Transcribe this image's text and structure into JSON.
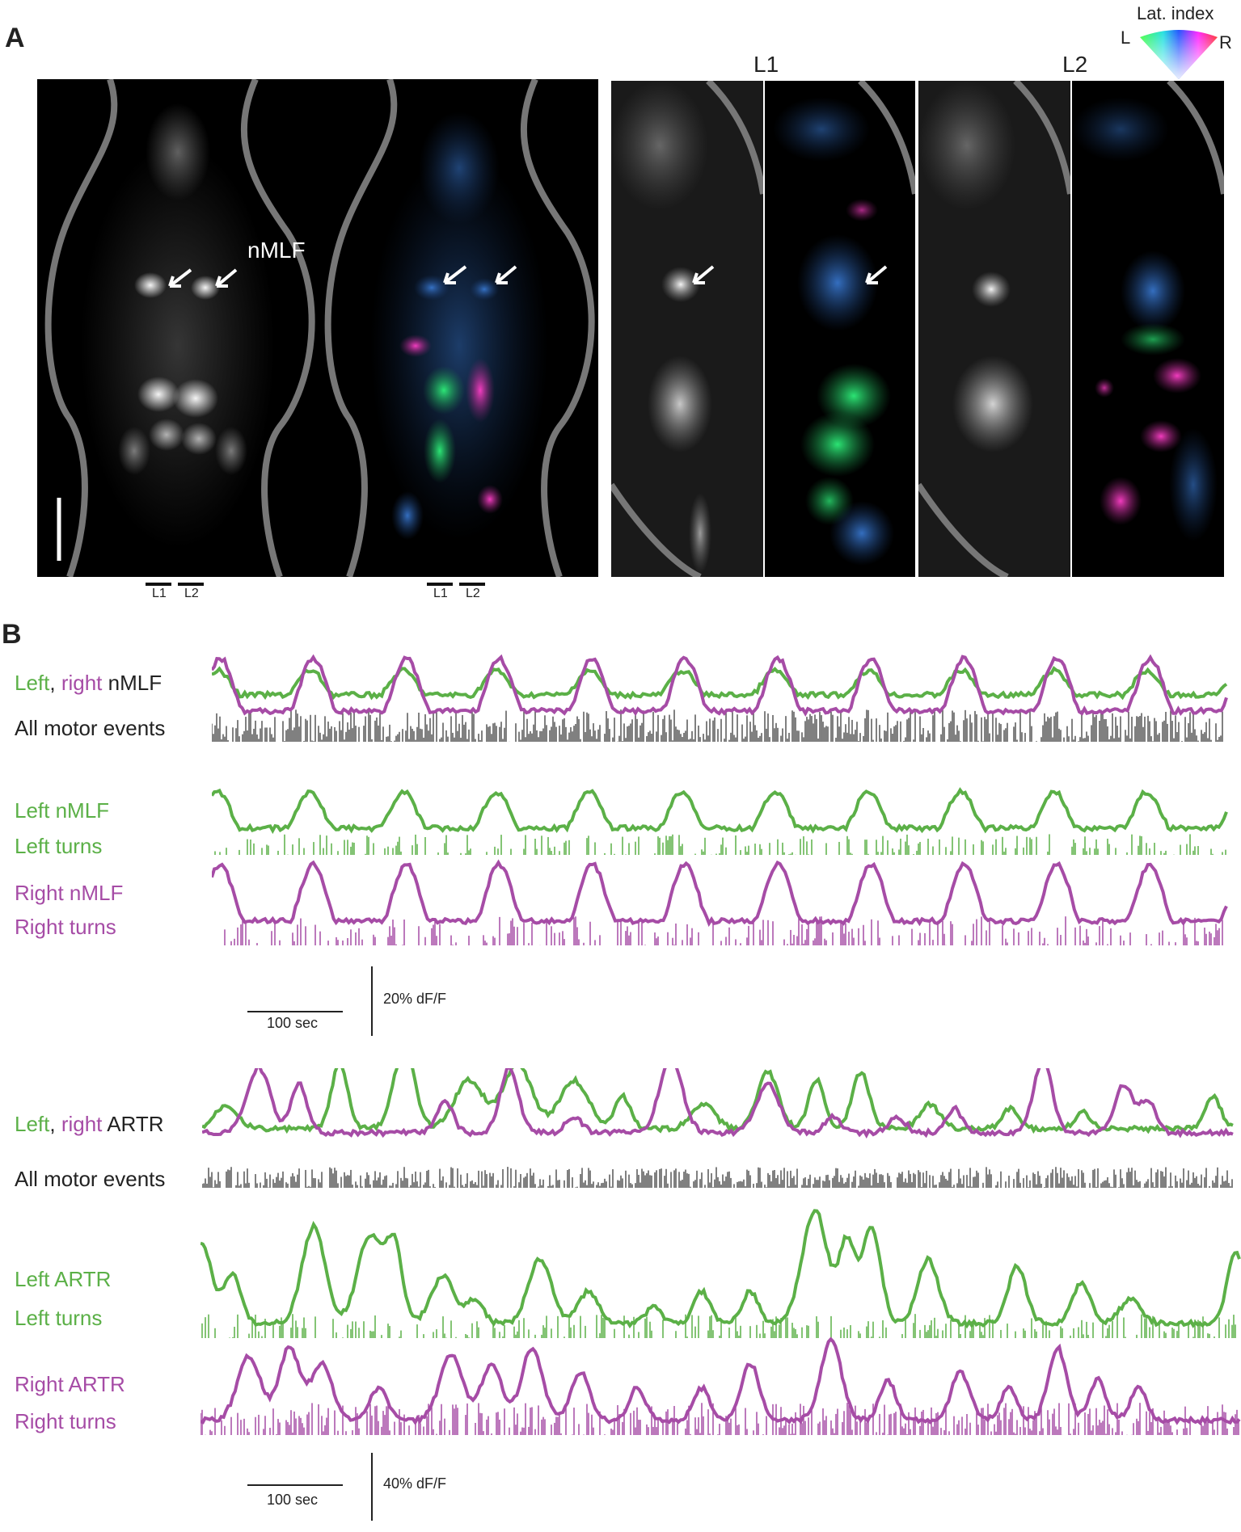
{
  "panelA": {
    "letter": "A",
    "nmlf_label": "nMLF",
    "col_labels": [
      "L1",
      "L2"
    ],
    "bar_labels": [
      "L1",
      "L2"
    ],
    "lat_index": {
      "title": "Lat. index",
      "left": "L",
      "right": "R"
    }
  },
  "panelB": {
    "letter": "B",
    "nmlf": {
      "row1": {
        "left": "Left",
        "comma": ", ",
        "right": "right",
        "suffix": " nMLF",
        "motor": "All motor events"
      },
      "row2": {
        "label1": "Left nMLF",
        "label2": "Left turns"
      },
      "row3": {
        "label1": "Right nMLF",
        "label2": "Right turns"
      },
      "scale": {
        "time": "100 sec",
        "amp": "20% dF/F"
      }
    },
    "artr": {
      "row1": {
        "left": "Left",
        "comma": ", ",
        "right": "right",
        "suffix": " ARTR",
        "motor": "All motor events"
      },
      "row2": {
        "label1": "Left ARTR",
        "label2": "Left turns"
      },
      "row3": {
        "label1": "Right ARTR",
        "label2": "Right turns"
      },
      "scale": {
        "time": "100 sec",
        "amp": "40% dF/F"
      }
    }
  },
  "colors": {
    "green": "#5bb047",
    "magenta": "#a64ca6",
    "motor": "#555555"
  }
}
